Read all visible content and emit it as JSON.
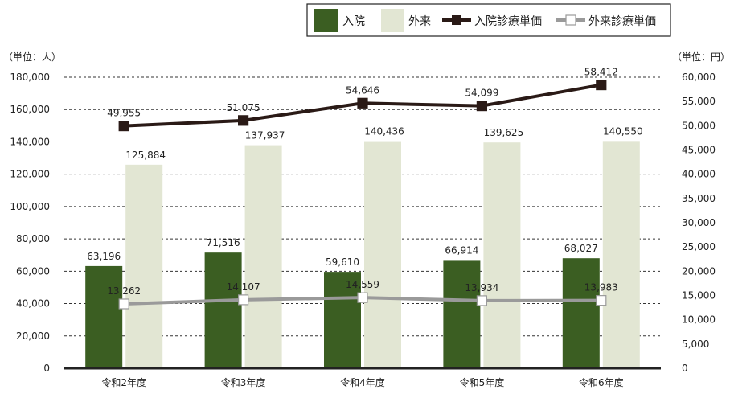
{
  "colors": {
    "inpatient_bar": "#3b5e22",
    "outpatient_bar": "#e2e6d3",
    "inpatient_line": "#2a1a16",
    "outpatient_line": "#9a9a9a",
    "gridline": "#333333",
    "axis": "#222222"
  },
  "chart_data": {
    "type": "bar",
    "title": "",
    "categories": [
      "令和2年度",
      "令和3年度",
      "令和4年度",
      "令和5年度",
      "令和6年度"
    ],
    "left_axis": {
      "unit_label": "（単位：人）",
      "ylim": [
        0,
        180000
      ],
      "ticks": [
        0,
        20000,
        40000,
        60000,
        80000,
        100000,
        120000,
        140000,
        160000,
        180000
      ],
      "tick_labels": [
        "0",
        "20,000",
        "40,000",
        "60,000",
        "80,000",
        "100,000",
        "120,000",
        "140,000",
        "160,000",
        "180,000"
      ]
    },
    "right_axis": {
      "unit_label": "（単位：円）",
      "ylim": [
        0,
        60000
      ],
      "ticks": [
        0,
        5000,
        10000,
        15000,
        20000,
        25000,
        30000,
        35000,
        40000,
        45000,
        50000,
        55000,
        60000
      ],
      "tick_labels": [
        "0",
        "5,000",
        "10,000",
        "15,000",
        "20,000",
        "25,000",
        "30,000",
        "35,000",
        "40,000",
        "45,000",
        "50,000",
        "55,000",
        "60,000"
      ]
    },
    "grid": true,
    "legend": {
      "placement": "top-right",
      "items": [
        "入院",
        "外来",
        "入院診療単価",
        "外来診療単価"
      ]
    },
    "series": [
      {
        "name": "入院",
        "type": "bar",
        "axis": "left",
        "values": [
          63196,
          71516,
          59610,
          66914,
          68027
        ],
        "labels": [
          "63,196",
          "71,516",
          "59,610",
          "66,914",
          "68,027"
        ]
      },
      {
        "name": "外来",
        "type": "bar",
        "axis": "left",
        "values": [
          125884,
          137937,
          140436,
          139625,
          140550
        ],
        "labels": [
          "125,884",
          "137,937",
          "140,436",
          "139,625",
          "140,550"
        ]
      },
      {
        "name": "入院診療単価",
        "type": "line",
        "axis": "right",
        "values": [
          49955,
          51075,
          54646,
          54099,
          58412
        ],
        "labels": [
          "49,955",
          "51,075",
          "54,646",
          "54,099",
          "58,412"
        ]
      },
      {
        "name": "外来診療単価",
        "type": "line",
        "axis": "right",
        "values": [
          13262,
          14107,
          14559,
          13934,
          13983
        ],
        "labels": [
          "13,262",
          "14,107",
          "14,559",
          "13,934",
          "13,983"
        ]
      }
    ]
  }
}
